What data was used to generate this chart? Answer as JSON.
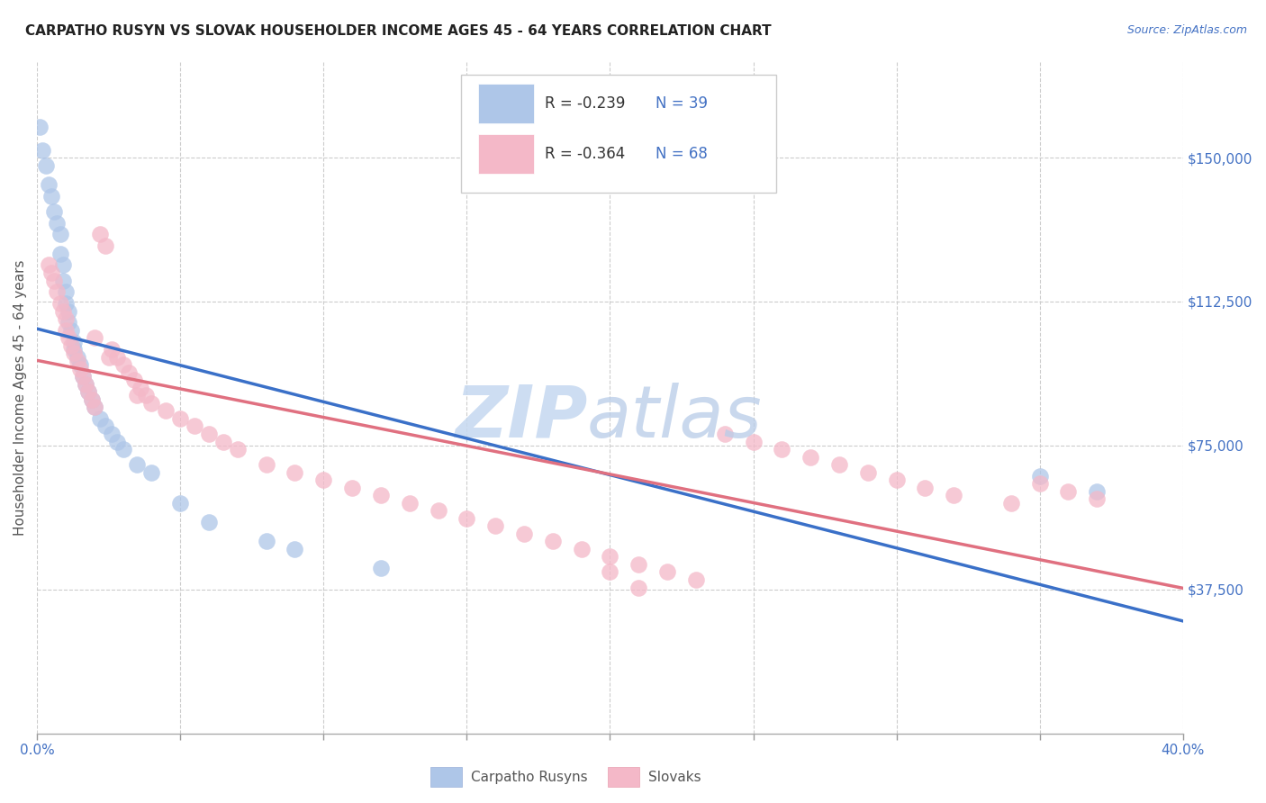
{
  "title": "CARPATHO RUSYN VS SLOVAK HOUSEHOLDER INCOME AGES 45 - 64 YEARS CORRELATION CHART",
  "source": "Source: ZipAtlas.com",
  "ylabel": "Householder Income Ages 45 - 64 years",
  "y_ticks_right_vals": [
    150000,
    112500,
    75000,
    37500
  ],
  "y_ticks_right_labels": [
    "$150,000",
    "$112,500",
    "$75,000",
    "$37,500"
  ],
  "legend_blue_r": "R = -0.239",
  "legend_blue_n": "N = 39",
  "legend_pink_r": "R = -0.364",
  "legend_pink_n": "N = 68",
  "legend_label_blue": "Carpatho Rusyns",
  "legend_label_pink": "Slovaks",
  "blue_scatter_color": "#aec6e8",
  "pink_scatter_color": "#f4b8c8",
  "blue_line_color": "#3a70c8",
  "pink_line_color": "#e07080",
  "title_color": "#222222",
  "source_color": "#4472c4",
  "right_tick_color": "#4472c4",
  "axis_label_color": "#555555",
  "legend_r_color": "#333333",
  "legend_n_color": "#4472c4",
  "watermark_zip_color": "#c5d8f0",
  "watermark_atlas_color": "#b8cce8",
  "grid_color": "#cccccc",
  "xlim": [
    0.0,
    0.4
  ],
  "ylim": [
    0,
    175000
  ],
  "x_tick_positions": [
    0.0,
    0.05,
    0.1,
    0.15,
    0.2,
    0.25,
    0.3,
    0.35,
    0.4
  ],
  "figsize": [
    14.06,
    8.92
  ],
  "dpi": 100,
  "blue_x": [
    0.001,
    0.002,
    0.003,
    0.004,
    0.005,
    0.006,
    0.007,
    0.008,
    0.008,
    0.009,
    0.009,
    0.01,
    0.01,
    0.011,
    0.011,
    0.012,
    0.013,
    0.013,
    0.014,
    0.015,
    0.016,
    0.017,
    0.018,
    0.019,
    0.02,
    0.022,
    0.024,
    0.026,
    0.028,
    0.03,
    0.035,
    0.04,
    0.05,
    0.06,
    0.08,
    0.09,
    0.12,
    0.35,
    0.37
  ],
  "blue_y": [
    158000,
    152000,
    148000,
    143000,
    140000,
    136000,
    133000,
    130000,
    125000,
    122000,
    118000,
    115000,
    112000,
    110000,
    107000,
    105000,
    102000,
    100000,
    98000,
    96000,
    93000,
    91000,
    89000,
    87000,
    85000,
    82000,
    80000,
    78000,
    76000,
    74000,
    70000,
    68000,
    60000,
    55000,
    50000,
    48000,
    43000,
    67000,
    63000
  ],
  "pink_x": [
    0.004,
    0.005,
    0.006,
    0.007,
    0.008,
    0.009,
    0.01,
    0.01,
    0.011,
    0.012,
    0.013,
    0.014,
    0.015,
    0.016,
    0.017,
    0.018,
    0.019,
    0.02,
    0.022,
    0.024,
    0.026,
    0.028,
    0.03,
    0.032,
    0.034,
    0.036,
    0.038,
    0.04,
    0.045,
    0.05,
    0.055,
    0.06,
    0.065,
    0.07,
    0.08,
    0.09,
    0.1,
    0.11,
    0.12,
    0.13,
    0.14,
    0.15,
    0.16,
    0.17,
    0.18,
    0.19,
    0.2,
    0.21,
    0.22,
    0.23,
    0.24,
    0.25,
    0.26,
    0.27,
    0.28,
    0.29,
    0.3,
    0.31,
    0.32,
    0.34,
    0.35,
    0.36,
    0.37,
    0.02,
    0.025,
    0.035,
    0.2,
    0.21
  ],
  "pink_y": [
    122000,
    120000,
    118000,
    115000,
    112000,
    110000,
    108000,
    105000,
    103000,
    101000,
    99000,
    97000,
    95000,
    93000,
    91000,
    89000,
    87000,
    85000,
    130000,
    127000,
    100000,
    98000,
    96000,
    94000,
    92000,
    90000,
    88000,
    86000,
    84000,
    82000,
    80000,
    78000,
    76000,
    74000,
    70000,
    68000,
    66000,
    64000,
    62000,
    60000,
    58000,
    56000,
    54000,
    52000,
    50000,
    48000,
    46000,
    44000,
    42000,
    40000,
    78000,
    76000,
    74000,
    72000,
    70000,
    68000,
    66000,
    64000,
    62000,
    60000,
    65000,
    63000,
    61000,
    103000,
    98000,
    88000,
    42000,
    38000
  ]
}
